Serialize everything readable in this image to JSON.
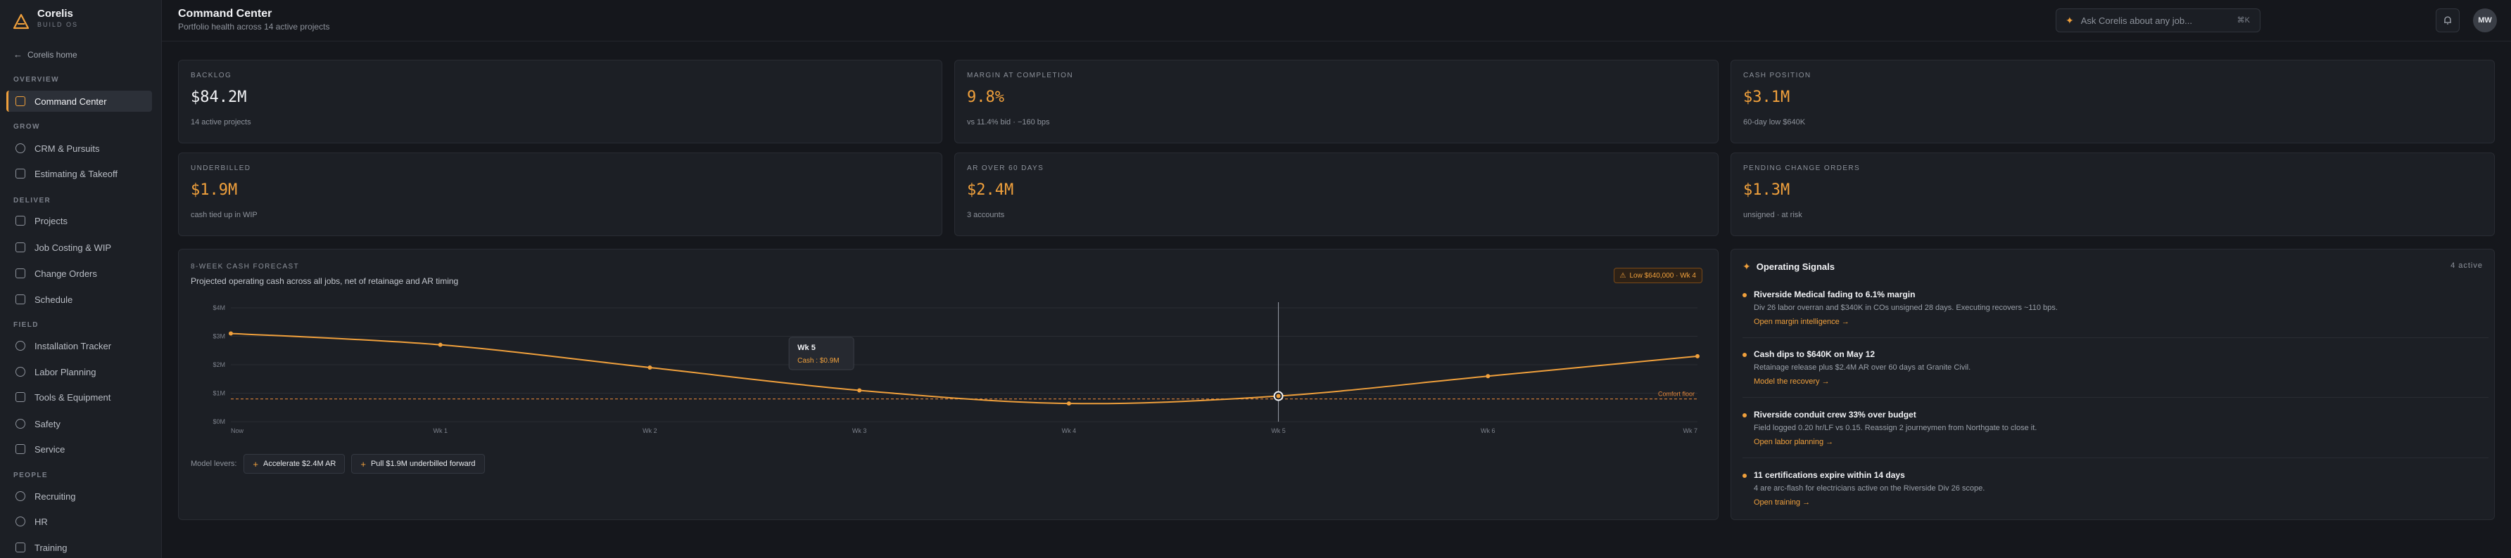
{
  "brand": {
    "name": "Corelis",
    "sub": "BUILD OS"
  },
  "sidebar": {
    "home_link": "Corelis home",
    "sections": [
      {
        "label": "OVERVIEW"
      },
      {
        "label": "GROW"
      },
      {
        "label": "DELIVER"
      },
      {
        "label": "FIELD"
      },
      {
        "label": "PEOPLE"
      }
    ],
    "items": [
      {
        "label": "Command Center",
        "icon": "grid-icon"
      },
      {
        "label": "CRM & Pursuits",
        "icon": "target-icon"
      },
      {
        "label": "Estimating & Takeoff",
        "icon": "clipboard-icon"
      },
      {
        "label": "Projects",
        "icon": "folder-icon"
      },
      {
        "label": "Job Costing & WIP",
        "icon": "calculator-icon"
      },
      {
        "label": "Change Orders",
        "icon": "swap-icon"
      },
      {
        "label": "Schedule",
        "icon": "calendar-icon"
      },
      {
        "label": "Installation Tracker",
        "icon": "gauge-icon"
      },
      {
        "label": "Labor Planning",
        "icon": "users-icon"
      },
      {
        "label": "Tools & Equipment",
        "icon": "toolbox-icon"
      },
      {
        "label": "Safety",
        "icon": "shield-icon"
      },
      {
        "label": "Service",
        "icon": "wrench-icon"
      },
      {
        "label": "Recruiting",
        "icon": "user-plus-icon"
      },
      {
        "label": "HR",
        "icon": "id-card-icon"
      },
      {
        "label": "Training",
        "icon": "graduation-icon"
      }
    ]
  },
  "header": {
    "title": "Command Center",
    "subtitle": "Portfolio health across 14 active projects",
    "ask_placeholder": "Ask Corelis about any job...",
    "ask_shortcut": "⌘K",
    "avatar_initials": "MW"
  },
  "kpis": [
    {
      "label": "BACKLOG",
      "value": "$84.2M",
      "sub": "14 active projects",
      "tone": "white"
    },
    {
      "label": "MARGIN AT COMPLETION",
      "value": "9.8%",
      "sub": "vs 11.4% bid · −160 bps",
      "tone": "orange"
    },
    {
      "label": "CASH POSITION",
      "value": "$3.1M",
      "sub": "60-day low $640K",
      "tone": "orange"
    },
    {
      "label": "UNDERBILLED",
      "value": "$1.9M",
      "sub": "cash tied up in WIP",
      "tone": "orange"
    },
    {
      "label": "AR OVER 60 DAYS",
      "value": "$2.4M",
      "sub": "3 accounts",
      "tone": "orange"
    },
    {
      "label": "PENDING CHANGE ORDERS",
      "value": "$1.3M",
      "sub": "unsigned · at risk",
      "tone": "orange"
    }
  ],
  "forecast": {
    "label": "8-WEEK CASH FORECAST",
    "subtitle": "Projected operating cash across all jobs, net of retainage and AR timing",
    "low_badge": "Low $640,000 · Wk 4",
    "levers_label": "Model levers:",
    "levers": [
      "Accelerate $2.4M AR",
      "Pull $1.9M underbilled forward"
    ]
  },
  "chart_data": {
    "type": "line",
    "x": [
      "Now",
      "Wk 1",
      "Wk 2",
      "Wk 3",
      "Wk 4",
      "Wk 5",
      "Wk 6",
      "Wk 7"
    ],
    "series": [
      {
        "values": [
          3.1,
          2.7,
          1.9,
          1.1,
          0.64,
          0.9,
          1.6,
          2.3
        ]
      }
    ],
    "y_ticks": [
      "$0M",
      "$1M",
      "$2M",
      "$3M",
      "$4M"
    ],
    "ylim": [
      0,
      4
    ],
    "reference_line": {
      "value": 0.8,
      "label": "Comfort floor"
    },
    "tooltip": {
      "title": "Wk 5",
      "text": "Cash : $0.9M"
    },
    "grid": true,
    "colors": {
      "line": "#f0a03c",
      "floor": "#e8883a",
      "grid": "#2a2d34"
    }
  },
  "signals": {
    "title": "Operating Signals",
    "count": "4 active",
    "items": [
      {
        "title": "Riverside Medical fading to 6.1% margin",
        "body": "Div 26 labor overran and $340K in COs unsigned 28 days. Executing recovers ~110 bps.",
        "link": "Open margin intelligence →"
      },
      {
        "title": "Cash dips to $640K on May 12",
        "body": "Retainage release plus $2.4M AR over 60 days at Granite Civil.",
        "link": "Model the recovery →"
      },
      {
        "title": "Riverside conduit crew 33% over budget",
        "body": "Field logged 0.20 hr/LF vs 0.15. Reassign 2 journeymen from Northgate to close it.",
        "link": "Open labor planning →"
      },
      {
        "title": "11 certifications expire within 14 days",
        "body": "4 are arc-flash for electricians active on the Riverside Div 26 scope.",
        "link": "Open training →"
      }
    ]
  }
}
